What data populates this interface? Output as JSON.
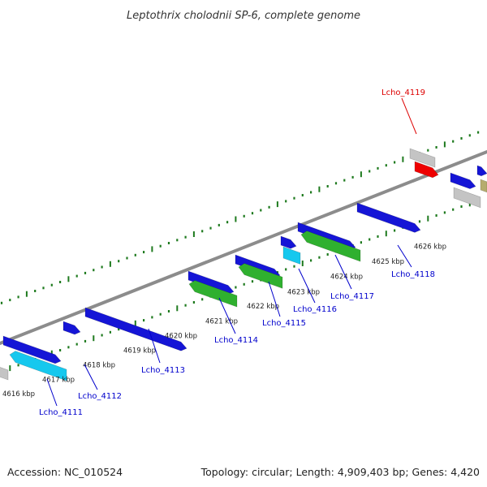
{
  "title": "Leptothrix cholodnii SP-6, complete genome",
  "footer": {
    "accession": "Accession: NC_010524",
    "summary": "Topology: circular; Length: 4,909,403 bp; Genes: 4,420"
  },
  "colors": {
    "backbone": "#8c8c8c",
    "tick": "#1e7a1e",
    "forward_gene": "#1515d6",
    "reverse_green": "#2fb02f",
    "reverse_cyan": "#16c8ee",
    "gray_feature": "#c4c4c4",
    "olive_feature": "#b5ac6e",
    "highlight_gene": "#ee0000",
    "label_blue": "#0000cc",
    "label_red": "#dd0000"
  },
  "scale_labels": [
    "4616 kbp",
    "4617 kbp",
    "4618 kbp",
    "4619 kbp",
    "4620 kbp",
    "4621 kbp",
    "4622 kbp",
    "4623 kbp",
    "4624 kbp",
    "4625 kbp",
    "4626 kbp"
  ],
  "gene_labels": [
    {
      "id": "Lcho_4111",
      "color": "blue"
    },
    {
      "id": "Lcho_4112",
      "color": "blue"
    },
    {
      "id": "Lcho_4113",
      "color": "blue"
    },
    {
      "id": "Lcho_4114",
      "color": "blue"
    },
    {
      "id": "Lcho_4115",
      "color": "blue"
    },
    {
      "id": "Lcho_4116",
      "color": "blue"
    },
    {
      "id": "Lcho_4117",
      "color": "blue"
    },
    {
      "id": "Lcho_4118",
      "color": "blue"
    },
    {
      "id": "Lcho_4119",
      "color": "red"
    }
  ]
}
